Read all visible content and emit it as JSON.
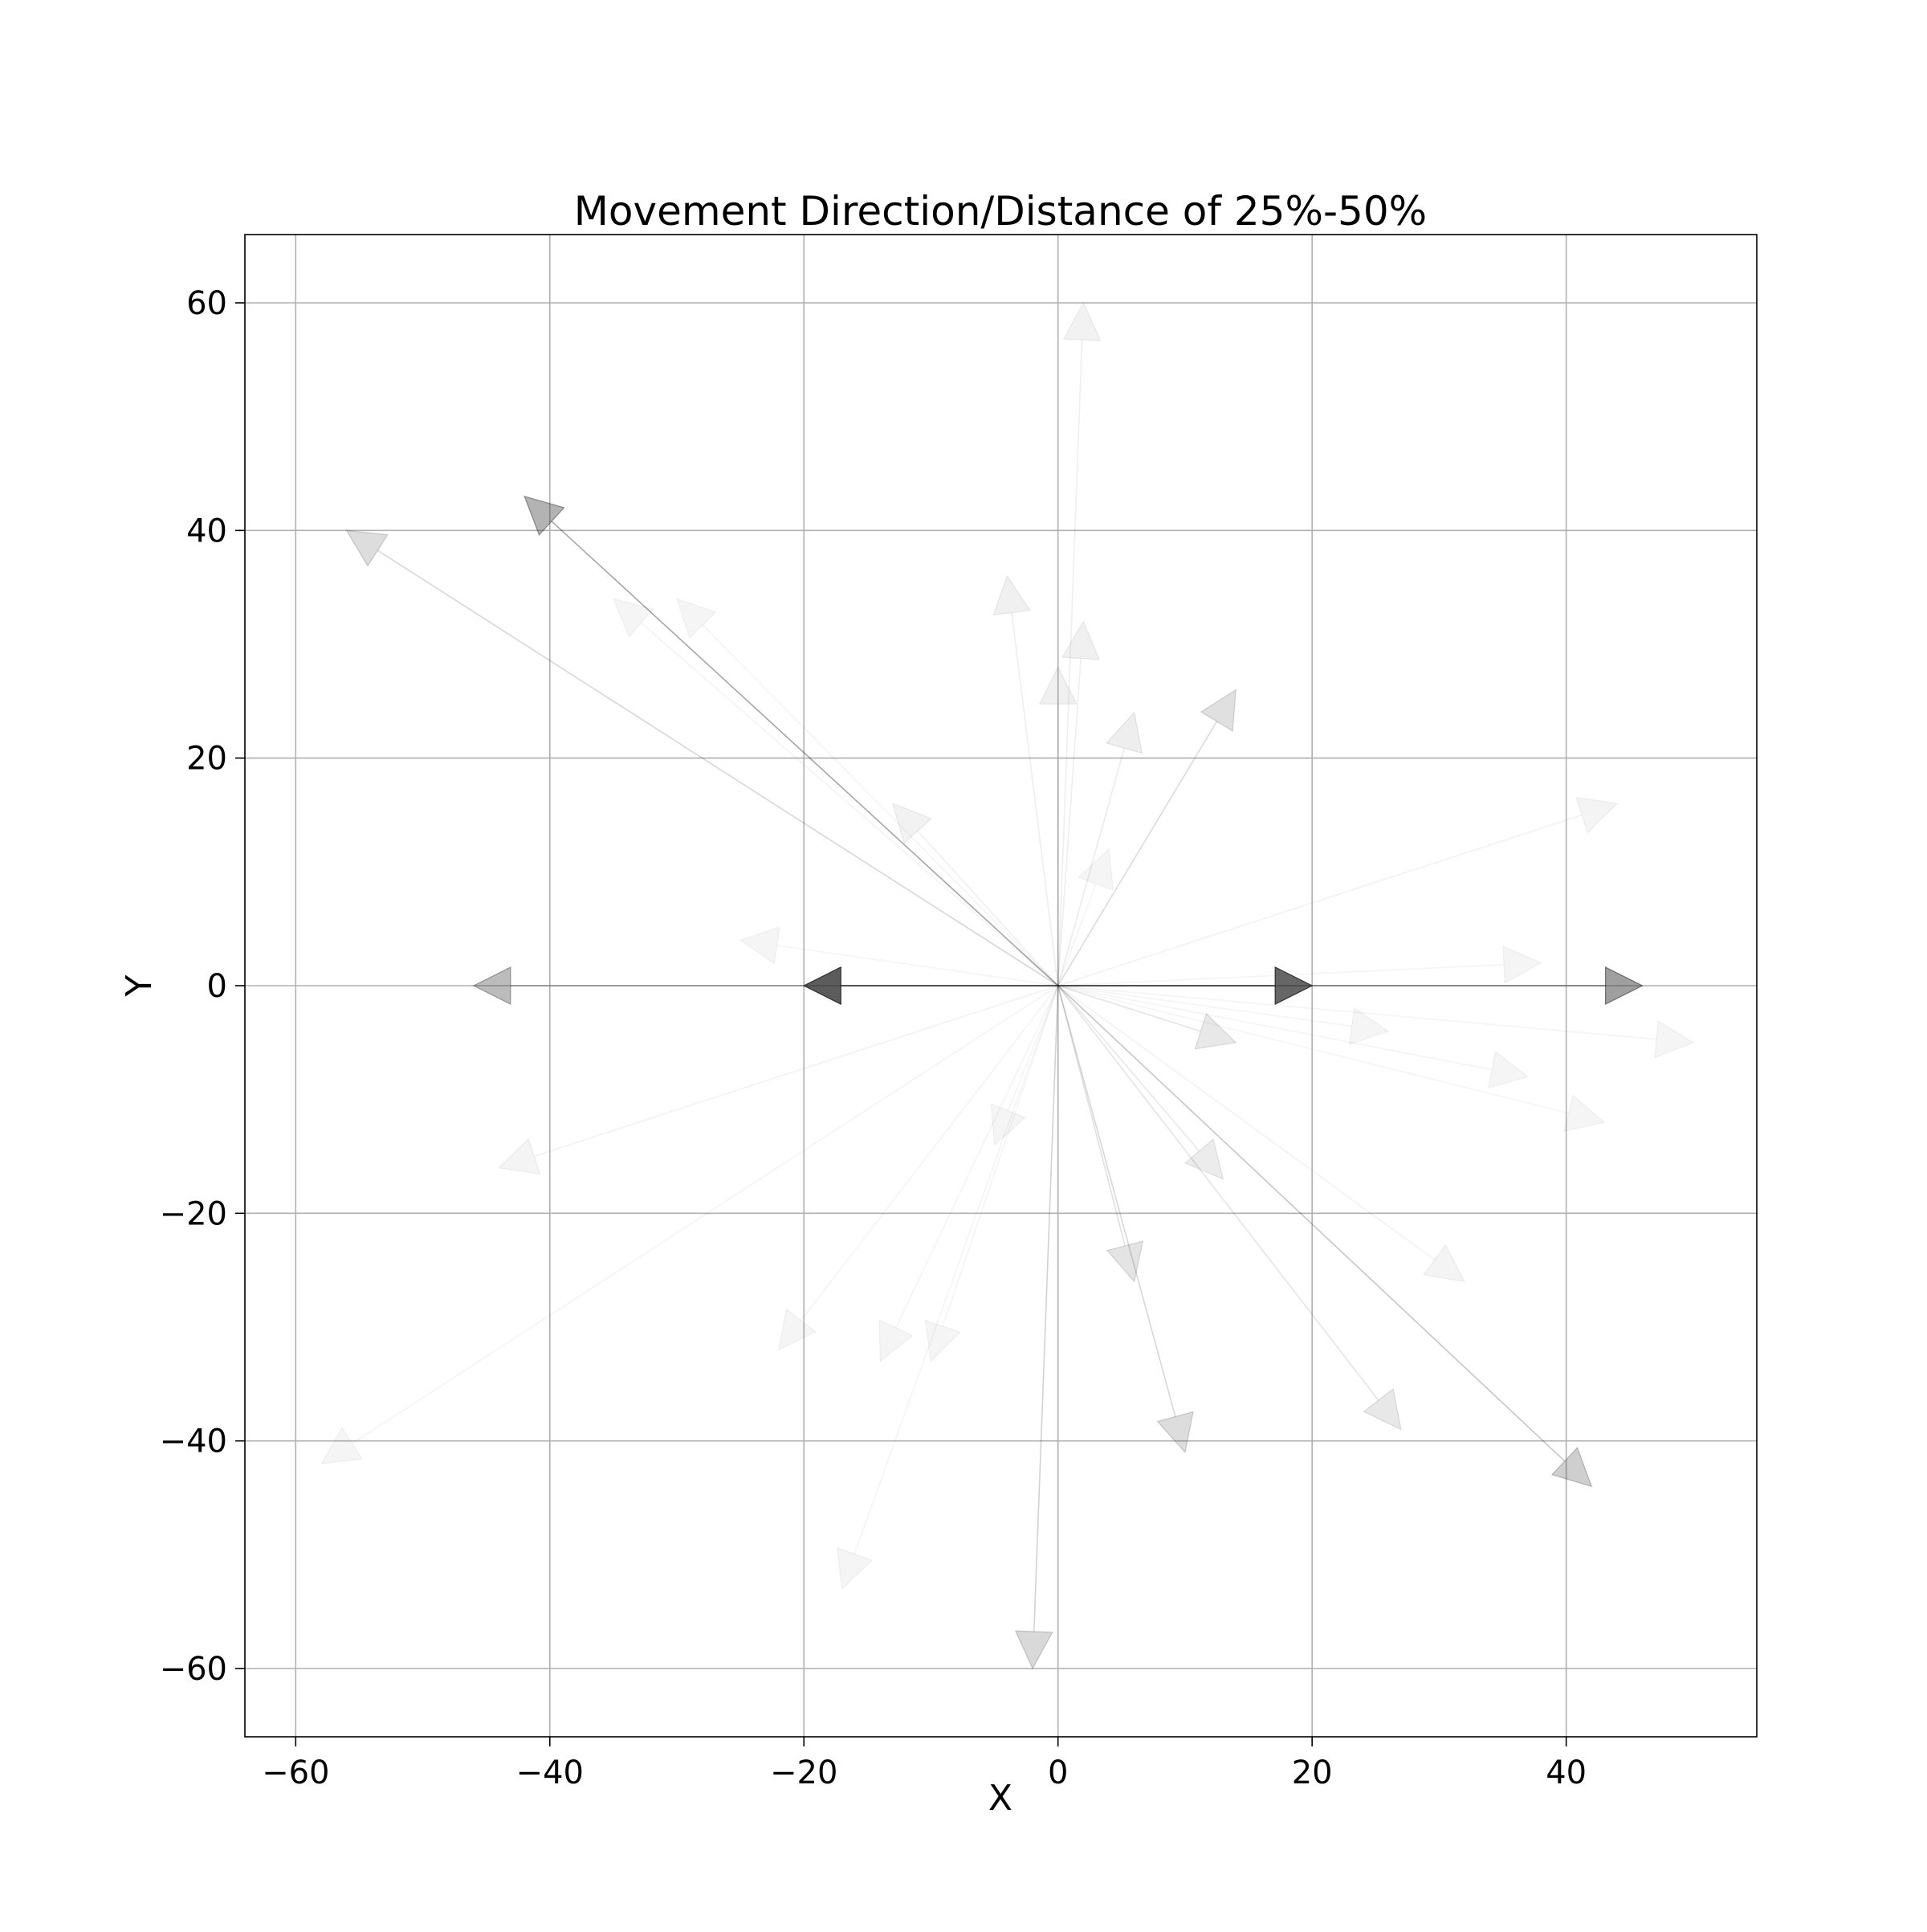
{
  "chart_data": {
    "type": "quiver",
    "title": "Movement Direction/Distance of 25%-50%",
    "xlabel": "X",
    "ylabel": "Y",
    "xlim": [
      -64,
      55
    ],
    "ylim": [
      -66,
      66
    ],
    "xticks": [
      -60,
      -40,
      -20,
      0,
      20,
      40
    ],
    "yticks": [
      -60,
      -40,
      -20,
      0,
      20,
      40,
      60
    ],
    "xtick_labels": [
      "−60",
      "−40",
      "−20",
      "0",
      "20",
      "40"
    ],
    "ytick_labels": [
      "−60",
      "−40",
      "−20",
      "0",
      "20",
      "40",
      "60"
    ],
    "grid": true,
    "color_meaning": "darker arrows = more frequent movement",
    "vectors": [
      {
        "dx": -20,
        "dy": 0,
        "shade": 0.85
      },
      {
        "dx": 20,
        "dy": 0,
        "shade": 0.8
      },
      {
        "dx": 46,
        "dy": 0,
        "shade": 0.5
      },
      {
        "dx": -46,
        "dy": 0,
        "shade": 0.35
      },
      {
        "dx": -42,
        "dy": 43,
        "shade": 0.4
      },
      {
        "dx": -56,
        "dy": 40,
        "shade": 0.18
      },
      {
        "dx": 42,
        "dy": -44,
        "shade": 0.25
      },
      {
        "dx": -2,
        "dy": -60,
        "shade": 0.2
      },
      {
        "dx": 10,
        "dy": -41,
        "shade": 0.18
      },
      {
        "dx": 14,
        "dy": 26,
        "shade": 0.16
      },
      {
        "dx": 27,
        "dy": -39,
        "shade": 0.12
      },
      {
        "dx": 6,
        "dy": -26,
        "shade": 0.14
      },
      {
        "dx": 14,
        "dy": -5,
        "shade": 0.12
      },
      {
        "dx": 13,
        "dy": -17,
        "shade": 0.1
      },
      {
        "dx": -4,
        "dy": 36,
        "shade": 0.08
      },
      {
        "dx": 2,
        "dy": 60,
        "shade": 0.07
      },
      {
        "dx": 2,
        "dy": 32,
        "shade": 0.08
      },
      {
        "dx": 0,
        "dy": 28,
        "shade": 0.08
      },
      {
        "dx": 6,
        "dy": 24,
        "shade": 0.09
      },
      {
        "dx": -13,
        "dy": 16,
        "shade": 0.07
      },
      {
        "dx": 44,
        "dy": 16,
        "shade": 0.06
      },
      {
        "dx": -44,
        "dy": -16,
        "shade": 0.06
      },
      {
        "dx": 32,
        "dy": -26,
        "shade": 0.06
      },
      {
        "dx": -58,
        "dy": -42,
        "shade": 0.04
      },
      {
        "dx": 50,
        "dy": -5,
        "shade": 0.03
      },
      {
        "dx": 43,
        "dy": -12,
        "shade": 0.03
      },
      {
        "dx": 38,
        "dy": 2,
        "shade": 0.02
      },
      {
        "dx": 37,
        "dy": -8,
        "shade": 0.02
      },
      {
        "dx": 26,
        "dy": -4,
        "shade": 0.02
      },
      {
        "dx": 4,
        "dy": 12,
        "shade": 0.02
      },
      {
        "dx": -25,
        "dy": 4,
        "shade": 0.02
      },
      {
        "dx": -30,
        "dy": 34,
        "shade": 0.02
      },
      {
        "dx": -35,
        "dy": 34,
        "shade": 0.02
      },
      {
        "dx": -22,
        "dy": -32,
        "shade": 0.02
      },
      {
        "dx": -14,
        "dy": -33,
        "shade": 0.02
      },
      {
        "dx": -10,
        "dy": -33,
        "shade": 0.02
      },
      {
        "dx": -17,
        "dy": -53,
        "shade": 0.02
      },
      {
        "dx": -5,
        "dy": -14,
        "shade": 0.02
      }
    ]
  }
}
